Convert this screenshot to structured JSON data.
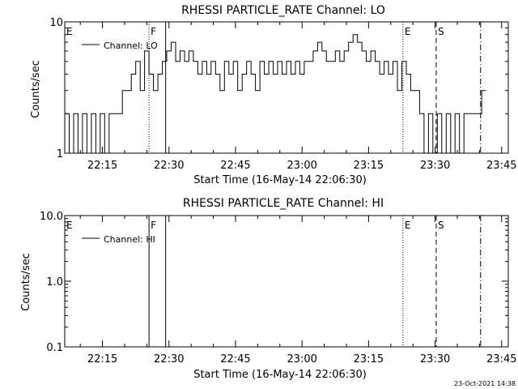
{
  "footer_date": "23-Oct-2021 14:38",
  "chart_data": [
    {
      "type": "line",
      "title": "RHESSI PARTICLE_RATE Channel: LO",
      "xlabel": "Start Time (16-May-14 22:06:30)",
      "ylabel": "Counts/sec",
      "yscale": "log",
      "xlim": [
        "22:06:30",
        "23:46:30"
      ],
      "ylim": [
        1,
        10
      ],
      "xticks": [
        "22:15",
        "22:30",
        "22:45",
        "23:00",
        "23:15",
        "23:30",
        "23:45"
      ],
      "yticks": [
        "1",
        "10"
      ],
      "legend": "Channel: LO",
      "legend_position": "top-left",
      "markers": [
        {
          "label": "E",
          "time": "22:06:30",
          "style": "none"
        },
        {
          "label": "F",
          "time": "22:25:30",
          "style": "dotted"
        },
        {
          "label": "",
          "time": "22:29:15",
          "style": "solid"
        },
        {
          "label": "E",
          "time": "23:22:45",
          "style": "dotted"
        },
        {
          "label": "S",
          "time": "23:30:15",
          "style": "dashed"
        },
        {
          "label": "",
          "time": "23:40:15",
          "style": "dashdot"
        }
      ],
      "series": [
        {
          "name": "Channel: LO",
          "x": [
            "22:06:30",
            "22:07:30",
            "22:08:30",
            "22:09:30",
            "22:10:30",
            "22:11:30",
            "22:12:30",
            "22:13:30",
            "22:14:30",
            "22:15:30",
            "22:16:30",
            "22:17:30",
            "22:18:30",
            "22:19:30",
            "22:20:30",
            "22:21:30",
            "22:22:30",
            "22:23:30",
            "22:24:30",
            "22:25:30",
            "22:26:30",
            "22:27:30",
            "22:28:30",
            "22:29:30",
            "22:30:30",
            "22:31:30",
            "22:32:30",
            "22:33:30",
            "22:34:30",
            "22:35:30",
            "22:36:30",
            "22:37:30",
            "22:38:30",
            "22:39:30",
            "22:40:30",
            "22:41:30",
            "22:42:30",
            "22:43:30",
            "22:44:30",
            "22:45:30",
            "22:46:30",
            "22:47:30",
            "22:48:30",
            "22:49:30",
            "22:50:30",
            "22:51:30",
            "22:52:30",
            "22:53:30",
            "22:54:30",
            "22:55:30",
            "22:56:30",
            "22:57:30",
            "22:58:30",
            "22:59:30",
            "23:00:30",
            "23:01:30",
            "23:02:30",
            "23:03:30",
            "23:04:30",
            "23:05:30",
            "23:06:30",
            "23:07:30",
            "23:08:30",
            "23:09:30",
            "23:10:30",
            "23:11:30",
            "23:12:30",
            "23:13:30",
            "23:14:30",
            "23:15:30",
            "23:16:30",
            "23:17:30",
            "23:18:30",
            "23:19:30",
            "23:20:30",
            "23:21:30",
            "23:22:30",
            "23:23:30",
            "23:24:30",
            "23:25:30",
            "23:26:30",
            "23:27:30",
            "23:28:30",
            "23:29:30",
            "23:30:30",
            "23:31:30",
            "23:32:30",
            "23:33:30",
            "23:34:30",
            "23:35:30",
            "23:36:30",
            "23:37:30",
            "23:38:30",
            "23:39:30",
            "23:40:30"
          ],
          "values": [
            2,
            1,
            2,
            1,
            2,
            1,
            2,
            1,
            2,
            1,
            2,
            2,
            2,
            3,
            3,
            4,
            5,
            3,
            6,
            4,
            3,
            4,
            5,
            6,
            7,
            5,
            6,
            5,
            6,
            5,
            4,
            5,
            4,
            5,
            4,
            3,
            5,
            4,
            5,
            3,
            4,
            5,
            4,
            3,
            5,
            4,
            5,
            4,
            5,
            4,
            5,
            4,
            5,
            4,
            5,
            5,
            6,
            7,
            6,
            5,
            5,
            6,
            5,
            6,
            7,
            8,
            7,
            6,
            5,
            6,
            5,
            4,
            5,
            4,
            5,
            3,
            5,
            4,
            3,
            3,
            2,
            1,
            2,
            1,
            2,
            1,
            2,
            1,
            2,
            1,
            2,
            2,
            2,
            2,
            3
          ]
        }
      ]
    },
    {
      "type": "line",
      "title": "RHESSI PARTICLE_RATE Channel: HI",
      "xlabel": "Start Time (16-May-14 22:06:30)",
      "ylabel": "Counts/sec",
      "yscale": "log",
      "xlim": [
        "22:06:30",
        "23:46:30"
      ],
      "ylim": [
        0.1,
        10.0
      ],
      "xticks": [
        "22:15",
        "22:30",
        "22:45",
        "23:00",
        "23:15",
        "23:30",
        "23:45"
      ],
      "yticks": [
        "0.1",
        "1.0",
        "10.0"
      ],
      "legend": "Channel: HI",
      "legend_position": "top-left",
      "markers": [
        {
          "label": "E",
          "time": "22:06:30",
          "style": "none"
        },
        {
          "label": "F",
          "time": "22:25:30",
          "style": "solid"
        },
        {
          "label": "",
          "time": "22:29:15",
          "style": "solid"
        },
        {
          "label": "E",
          "time": "23:22:45",
          "style": "dotted"
        },
        {
          "label": "S",
          "time": "23:30:15",
          "style": "dashed"
        },
        {
          "label": "",
          "time": "23:40:15",
          "style": "dashdot"
        }
      ],
      "series": [
        {
          "name": "Channel: HI",
          "x": [],
          "values": []
        }
      ]
    }
  ]
}
